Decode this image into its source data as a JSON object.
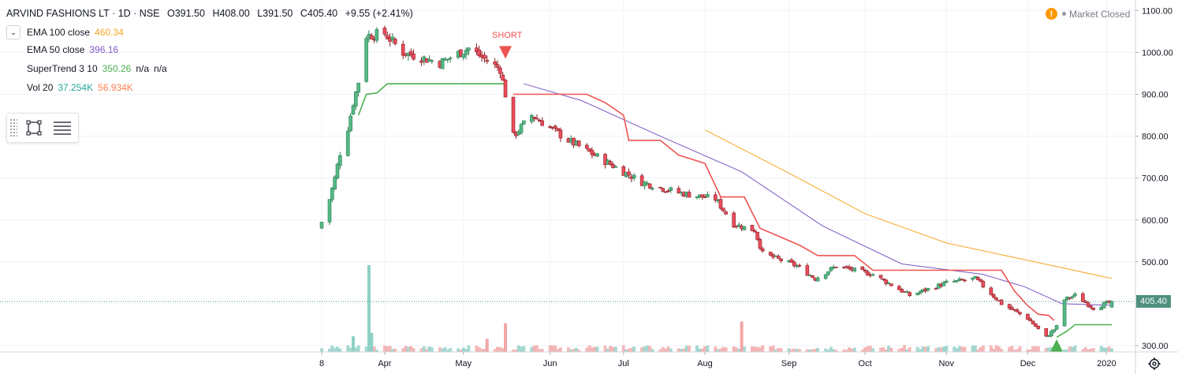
{
  "header": {
    "symbol": "ARVIND FASHIONS LT · 1D · NSE",
    "open": "O391.50",
    "high": "H408.00",
    "low": "L391.50",
    "close": "C405.40",
    "change": "+9.55 (+2.41%)"
  },
  "indicators": [
    {
      "label": "EMA 100 close",
      "values": [
        "460.34"
      ],
      "colors": [
        "#f5a623"
      ]
    },
    {
      "label": "EMA 50 close",
      "values": [
        "396.16"
      ],
      "colors": [
        "#7e57c2"
      ]
    },
    {
      "label": "SuperTrend 3 10",
      "values": [
        "350.26",
        "n/a",
        "n/a"
      ],
      "colors": [
        "#4caf50",
        "#131722",
        "#131722"
      ]
    },
    {
      "label": "Vol 20",
      "values": [
        "37.254K",
        "56.934K"
      ],
      "colors": [
        "#26a69a",
        "#ff7f50"
      ]
    }
  ],
  "market_status": "Market Closed",
  "last_price_tag": "405.40",
  "signals": {
    "short_label": "SHORT"
  },
  "icons": {
    "collapse": "chevron-down-icon",
    "tool_rect": "rectangle-tool-icon",
    "tool_lines": "horizontal-lines-icon",
    "warning": "warning-icon",
    "settings": "gear-icon",
    "buy_marker": "triangle-up-icon",
    "sell_marker": "triangle-down-icon"
  },
  "colors": {
    "up": "#53b987",
    "down": "#eb4d5c",
    "supertrend_up": "#4caf50",
    "supertrend_down": "#ef5350",
    "ema100": "#f5a623",
    "ema50": "#7e57c2",
    "vol_up": "#8ed0c6",
    "vol_down": "#f3a6a6"
  },
  "chart_data": {
    "type": "candlestick",
    "title": "ARVIND FASHIONS LT · 1D · NSE",
    "y_axis": {
      "min": 285,
      "max": 1110,
      "ticks": [
        "1100.00",
        "1000.00",
        "900.00",
        "800.00",
        "700.00",
        "600.00",
        "500.00",
        "400.00",
        "300.00"
      ]
    },
    "x_axis": {
      "ticks": [
        "8",
        "Apr",
        "May",
        "Jun",
        "Jul",
        "Aug",
        "Sep",
        "Oct",
        "Nov",
        "Dec",
        "2020"
      ]
    },
    "grid": true,
    "x_range": [
      "2019-03-08",
      "2020-01-03"
    ],
    "legend_position": "top-left",
    "ohlc_anchors": [
      [
        "2019-03-08",
        595
      ],
      [
        "2019-03-11",
        650
      ],
      [
        "2019-03-13",
        700
      ],
      [
        "2019-03-15",
        760
      ],
      [
        "2019-03-18",
        820
      ],
      [
        "2019-03-20",
        880
      ],
      [
        "2019-03-22",
        930
      ],
      [
        "2019-03-25",
        1040
      ],
      [
        "2019-04-01",
        1045
      ],
      [
        "2019-04-08",
        1000
      ],
      [
        "2019-04-22",
        975
      ],
      [
        "2019-05-03",
        1010
      ],
      [
        "2019-05-10",
        980
      ],
      [
        "2019-05-15",
        960
      ],
      [
        "2019-05-17",
        900
      ],
      [
        "2019-05-20",
        800
      ],
      [
        "2019-05-27",
        850
      ],
      [
        "2019-06-10",
        790
      ],
      [
        "2019-06-24",
        740
      ],
      [
        "2019-07-08",
        690
      ],
      [
        "2019-07-22",
        665
      ],
      [
        "2019-08-05",
        650
      ],
      [
        "2019-08-12",
        590
      ],
      [
        "2019-08-20",
        575
      ],
      [
        "2019-08-23",
        520
      ],
      [
        "2019-09-05",
        490
      ],
      [
        "2019-09-12",
        460
      ],
      [
        "2019-09-20",
        490
      ],
      [
        "2019-10-04",
        470
      ],
      [
        "2019-10-18",
        420
      ],
      [
        "2019-11-01",
        450
      ],
      [
        "2019-11-12",
        460
      ],
      [
        "2019-11-22",
        400
      ],
      [
        "2019-12-02",
        365
      ],
      [
        "2019-12-09",
        320
      ],
      [
        "2019-12-13",
        345
      ],
      [
        "2019-12-16",
        410
      ],
      [
        "2019-12-20",
        420
      ],
      [
        "2019-12-27",
        390
      ],
      [
        "2020-01-03",
        405
      ]
    ],
    "last": {
      "open": 391.5,
      "high": 408.0,
      "low": 391.5,
      "close": 405.4
    },
    "supertrend": [
      {
        "name": "SuperTrend up",
        "points": [
          [
            "2019-03-22",
            850
          ],
          [
            "2019-03-25",
            900
          ],
          [
            "2019-03-29",
            903
          ],
          [
            "2019-04-02",
            925
          ],
          [
            "2019-05-17",
            925
          ]
        ]
      },
      {
        "name": "SuperTrend down",
        "points": [
          [
            "2019-05-20",
            900
          ],
          [
            "2019-06-17",
            900
          ],
          [
            "2019-06-24",
            880
          ],
          [
            "2019-07-01",
            850
          ],
          [
            "2019-07-03",
            790
          ],
          [
            "2019-07-15",
            790
          ],
          [
            "2019-07-22",
            755
          ],
          [
            "2019-08-01",
            735
          ],
          [
            "2019-08-07",
            655
          ],
          [
            "2019-08-16",
            655
          ],
          [
            "2019-08-22",
            580
          ],
          [
            "2019-09-06",
            540
          ],
          [
            "2019-09-13",
            515
          ],
          [
            "2019-09-27",
            515
          ],
          [
            "2019-10-04",
            480
          ],
          [
            "2019-11-22",
            480
          ],
          [
            "2019-11-27",
            430
          ],
          [
            "2019-12-02",
            395
          ],
          [
            "2019-12-06",
            375
          ],
          [
            "2019-12-10",
            372
          ],
          [
            "2019-12-12",
            360
          ]
        ]
      },
      {
        "name": "SuperTrend up 2",
        "points": [
          [
            "2019-12-13",
            320
          ],
          [
            "2019-12-17",
            335
          ],
          [
            "2019-12-20",
            350
          ],
          [
            "2020-01-03",
            350
          ]
        ]
      }
    ],
    "ema100": {
      "name": "EMA 100 close",
      "points": [
        [
          "2019-08-01",
          815
        ],
        [
          "2019-09-01",
          715
        ],
        [
          "2019-10-01",
          615
        ],
        [
          "2019-11-01",
          545
        ],
        [
          "2019-12-01",
          505
        ],
        [
          "2020-01-03",
          460.34
        ]
      ]
    },
    "ema50": {
      "name": "EMA 50 close",
      "points": [
        [
          "2019-05-24",
          925
        ],
        [
          "2019-06-15",
          885
        ],
        [
          "2019-07-15",
          800
        ],
        [
          "2019-08-15",
          715
        ],
        [
          "2019-09-15",
          585
        ],
        [
          "2019-10-15",
          495
        ],
        [
          "2019-11-15",
          470
        ],
        [
          "2019-12-01",
          440
        ],
        [
          "2019-12-15",
          400
        ],
        [
          "2020-01-03",
          396.16
        ]
      ]
    },
    "volume": {
      "name": "Vol 20",
      "spikes": [
        [
          "2019-03-20",
          0.18
        ],
        [
          "2019-03-26",
          1.0
        ],
        [
          "2019-03-27",
          0.22
        ],
        [
          "2019-05-17",
          0.33
        ],
        [
          "2019-08-15",
          0.35
        ],
        [
          "2019-05-10",
          0.15
        ]
      ],
      "base": 0.06,
      "latest": "37.254K",
      "ma": "56.934K"
    },
    "signals": [
      {
        "type": "sell",
        "label": "SHORT",
        "date": "2019-05-17",
        "price": 1000
      },
      {
        "type": "buy",
        "date": "2019-12-13",
        "price": 300
      }
    ]
  }
}
